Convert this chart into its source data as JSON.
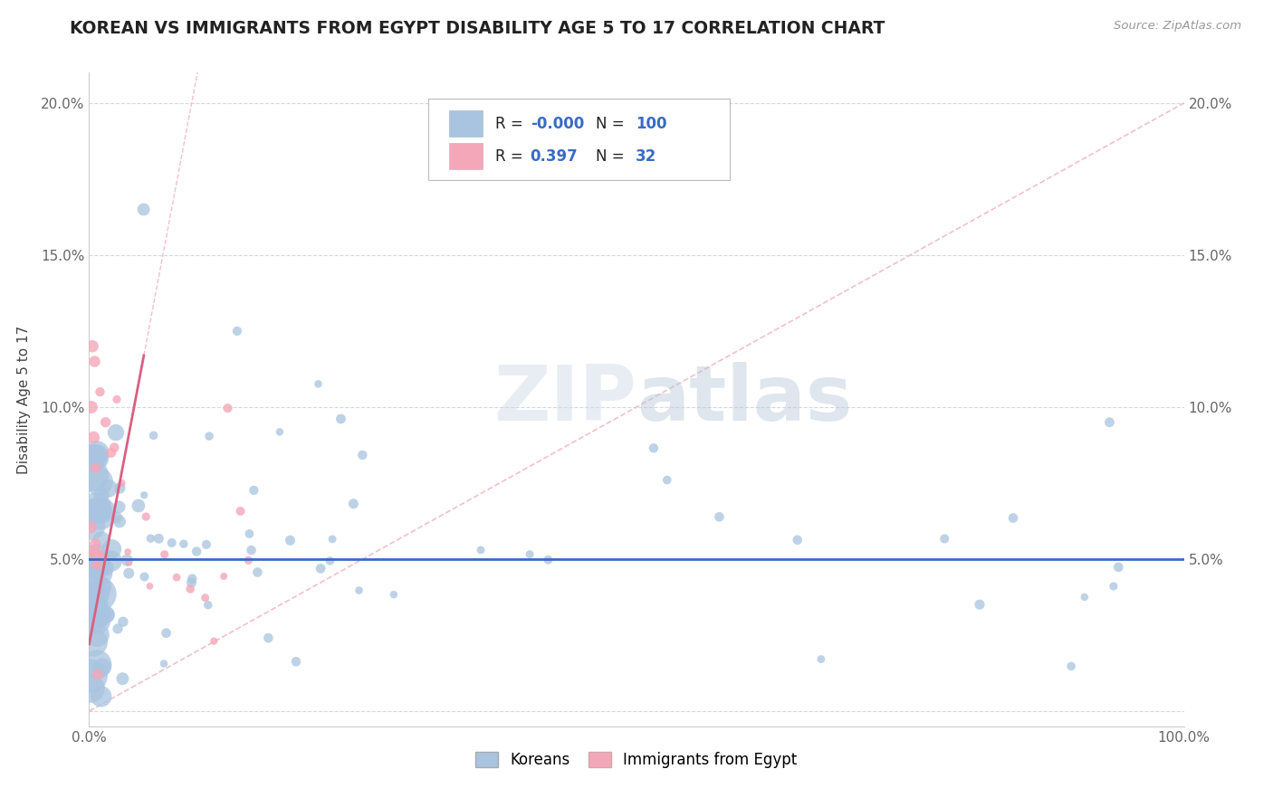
{
  "title": "KOREAN VS IMMIGRANTS FROM EGYPT DISABILITY AGE 5 TO 17 CORRELATION CHART",
  "source": "Source: ZipAtlas.com",
  "ylabel": "Disability Age 5 to 17",
  "xlim": [
    0,
    100
  ],
  "ylim": [
    -0.5,
    21
  ],
  "ytick_values": [
    0,
    5,
    10,
    15,
    20
  ],
  "ytick_labels": [
    "",
    "5.0%",
    "10.0%",
    "15.0%",
    "20.0%"
  ],
  "xtick_values": [
    0,
    10,
    20,
    30,
    40,
    50,
    60,
    70,
    80,
    90,
    100
  ],
  "xtick_labels": [
    "0.0%",
    "",
    "",
    "",
    "",
    "",
    "",
    "",
    "",
    "",
    "100.0%"
  ],
  "legend_korean": "Koreans",
  "legend_egypt": "Immigrants from Egypt",
  "r_korean": "-0.000",
  "n_korean": "100",
  "r_egypt": "0.397",
  "n_egypt": "32",
  "korean_color": "#a8c4e0",
  "egypt_color": "#f4a7b9",
  "trend_blue": "#3a6bc4",
  "trend_pink": "#d96080",
  "diag_color": "#f0b0c0",
  "background_color": "#ffffff",
  "watermark_zip": "ZIP",
  "watermark_atlas": "atlas",
  "grid_color": "#d0d8e8",
  "legend_value_color": "#3a6bc4",
  "legend_label_color": "#333333",
  "title_color": "#222222",
  "source_color": "#999999"
}
